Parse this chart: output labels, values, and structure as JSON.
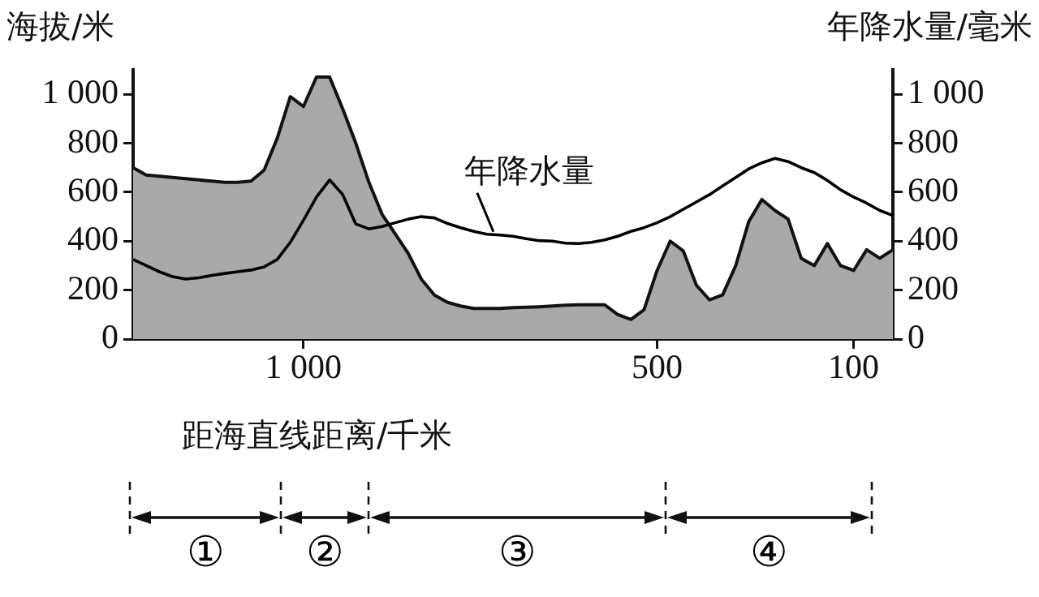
{
  "chart_data": {
    "type": "area",
    "ylabel": "海拔/米",
    "y2label": "年降水量/毫米",
    "xlabel": "距海直线距离/千米",
    "categories": [
      null,
      null,
      null,
      null,
      null,
      null,
      null,
      null,
      null,
      null,
      null,
      null,
      null,
      "1 000",
      null,
      null,
      null,
      null,
      null,
      null,
      null,
      null,
      null,
      null,
      null,
      null,
      null,
      null,
      null,
      null,
      null,
      null,
      null,
      null,
      null,
      null,
      null,
      null,
      null,
      null,
      "500",
      null,
      null,
      null,
      null,
      null,
      null,
      null,
      null,
      null,
      null,
      null,
      null,
      null,
      null,
      "100",
      null,
      null,
      null
    ],
    "series": [
      {
        "color": "#a9a9a9",
        "values": [
          700,
          670,
          665,
          660,
          655,
          650,
          645,
          640,
          640,
          645,
          690,
          820,
          990,
          950,
          1070,
          1070,
          940,
          800,
          640,
          510,
          430,
          350,
          245,
          180,
          150,
          135,
          125,
          125,
          125,
          128,
          130,
          132,
          135,
          138,
          140,
          140,
          140,
          100,
          80,
          120,
          280,
          400,
          360,
          220,
          160,
          180,
          300,
          480,
          570,
          525,
          490,
          330,
          300,
          390,
          300,
          280,
          365,
          330,
          365
        ]
      },
      {
        "type": "line",
        "name": "年降水量",
        "axis": "y2",
        "color": "#000000",
        "values": [
          325,
          300,
          275,
          255,
          245,
          250,
          260,
          268,
          275,
          282,
          295,
          325,
          395,
          485,
          580,
          650,
          590,
          470,
          450,
          460,
          475,
          490,
          500,
          495,
          472,
          455,
          440,
          428,
          425,
          420,
          410,
          402,
          400,
          392,
          390,
          395,
          405,
          420,
          440,
          455,
          475,
          500,
          530,
          560,
          590,
          625,
          660,
          695,
          720,
          738,
          725,
          700,
          680,
          648,
          610,
          580,
          555,
          525,
          505
        ]
      }
    ],
    "ylim": [
      0,
      1100
    ],
    "yticks": [
      0,
      200,
      400,
      600,
      800,
      {
        "value": 1000,
        "label": "1 000"
      }
    ],
    "y2lim": [
      0,
      1100
    ],
    "y2ticks": [
      0,
      200,
      400,
      600,
      800,
      {
        "value": 1000,
        "label": "1 000"
      }
    ],
    "grid": false,
    "legend": false,
    "marker": "none",
    "line_style": "solid",
    "annotations": [
      "①",
      "②",
      "③",
      "④"
    ]
  }
}
